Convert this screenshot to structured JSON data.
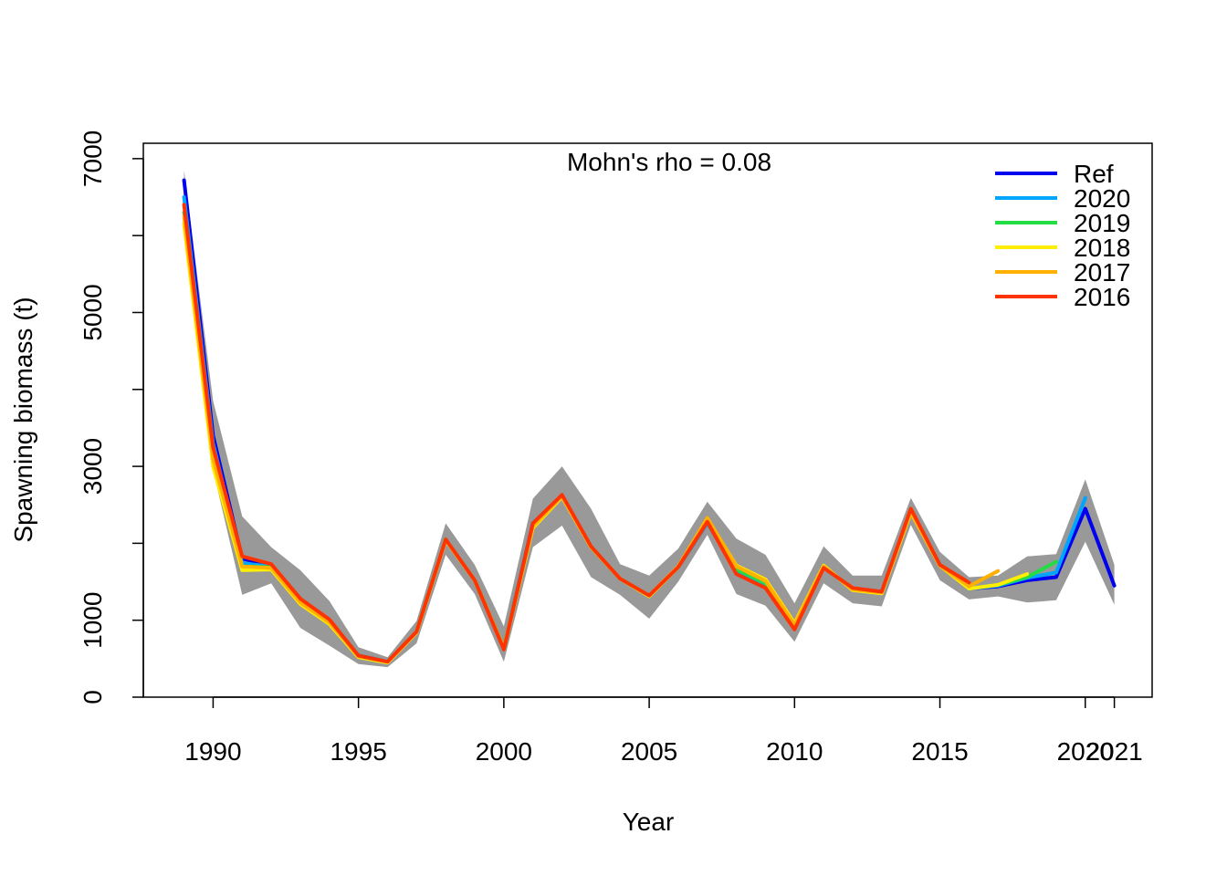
{
  "chart_data": {
    "type": "line",
    "title": "",
    "annotation": "Mohn's rho = 0.08",
    "xlabel": "Year",
    "ylabel": "Spawning biomass (t)",
    "xlim": [
      1987.6,
      2022.3
    ],
    "ylim": [
      0,
      7200
    ],
    "x_ticks": [
      1990,
      1995,
      2000,
      2005,
      2010,
      2015,
      2020,
      2021
    ],
    "x_tick_labels": [
      "1990",
      "1995",
      "2000",
      "2005",
      "2010",
      "2015",
      "2020",
      "2021"
    ],
    "y_ticks": [
      0,
      1000,
      3000,
      5000,
      7000
    ],
    "y_tick_labels": [
      "0",
      "1000",
      "3000",
      "5000",
      "7000"
    ],
    "grid": false,
    "legend": {
      "position": "top-right",
      "entries": [
        "Ref",
        "2020",
        "2019",
        "2018",
        "2017",
        "2016"
      ]
    },
    "confidence_band": {
      "color": "#999999",
      "x": [
        1989,
        1990,
        1991,
        1992,
        1993,
        1994,
        1995,
        1996,
        1997,
        1998,
        1999,
        2000,
        2001,
        2002,
        2003,
        2004,
        2005,
        2006,
        2007,
        2008,
        2009,
        2010,
        2011,
        2012,
        2013,
        2014,
        2015,
        2016,
        2017,
        2018,
        2019,
        2020,
        2021
      ],
      "upper": [
        6850,
        3850,
        2350,
        1950,
        1650,
        1250,
        650,
        520,
        990,
        2260,
        1720,
        920,
        2580,
        3000,
        2450,
        1730,
        1580,
        1930,
        2540,
        2060,
        1850,
        1220,
        1960,
        1580,
        1580,
        2590,
        1890,
        1560,
        1580,
        1830,
        1860,
        2830,
        1720
      ],
      "lower": [
        6000,
        2950,
        1330,
        1480,
        900,
        670,
        430,
        390,
        700,
        1850,
        1340,
        460,
        1950,
        2230,
        1560,
        1330,
        1020,
        1500,
        2110,
        1340,
        1190,
        720,
        1480,
        1220,
        1180,
        2240,
        1520,
        1270,
        1310,
        1230,
        1260,
        2020,
        1200
      ]
    },
    "series": [
      {
        "name": "Ref",
        "color": "#0000ee",
        "x": [
          1989,
          1990,
          1991,
          1992,
          1993,
          1994,
          1995,
          1996,
          1997,
          1998,
          1999,
          2000,
          2001,
          2002,
          2003,
          2004,
          2005,
          2006,
          2007,
          2008,
          2009,
          2010,
          2011,
          2012,
          2013,
          2014,
          2015,
          2016,
          2017,
          2018,
          2019,
          2020,
          2021
        ],
        "values": [
          6720,
          3400,
          1800,
          1720,
          1270,
          1000,
          540,
          460,
          850,
          2050,
          1520,
          640,
          2260,
          2620,
          1950,
          1540,
          1320,
          1690,
          2270,
          1640,
          1460,
          900,
          1690,
          1410,
          1370,
          2420,
          1720,
          1410,
          1440,
          1520,
          1560,
          2450,
          1450
        ]
      },
      {
        "name": "2020",
        "color": "#00a5ff",
        "x": [
          1989,
          1990,
          1991,
          1992,
          1993,
          1994,
          1995,
          1996,
          1997,
          1998,
          1999,
          2000,
          2001,
          2002,
          2003,
          2004,
          2005,
          2006,
          2007,
          2008,
          2009,
          2010,
          2011,
          2012,
          2013,
          2014,
          2015,
          2016,
          2017,
          2018,
          2019,
          2020
        ],
        "values": [
          6500,
          3300,
          1740,
          1700,
          1260,
          990,
          540,
          460,
          850,
          2050,
          1520,
          640,
          2260,
          2620,
          1950,
          1540,
          1320,
          1690,
          2270,
          1640,
          1460,
          900,
          1690,
          1410,
          1370,
          2420,
          1720,
          1410,
          1450,
          1550,
          1620,
          2590
        ]
      },
      {
        "name": "2019",
        "color": "#22dd44",
        "x": [
          1989,
          1990,
          1991,
          1992,
          1993,
          1994,
          1995,
          1996,
          1997,
          1998,
          1999,
          2000,
          2001,
          2002,
          2003,
          2004,
          2005,
          2006,
          2007,
          2008,
          2009,
          2010,
          2011,
          2012,
          2013,
          2014,
          2015,
          2016,
          2017,
          2018,
          2019
        ],
        "values": [
          6300,
          3150,
          1700,
          1690,
          1240,
          980,
          530,
          460,
          850,
          2050,
          1520,
          640,
          2230,
          2620,
          1950,
          1540,
          1310,
          1690,
          2290,
          1660,
          1480,
          920,
          1700,
          1400,
          1360,
          2420,
          1720,
          1410,
          1460,
          1560,
          1760
        ]
      },
      {
        "name": "2018",
        "color": "#ffee00",
        "x": [
          1989,
          1990,
          1991,
          1992,
          1993,
          1994,
          1995,
          1996,
          1997,
          1998,
          1999,
          2000,
          2001,
          2002,
          2003,
          2004,
          2005,
          2006,
          2007,
          2008,
          2009,
          2010,
          2011,
          2012,
          2013,
          2014,
          2015,
          2016,
          2017,
          2018
        ],
        "values": [
          6150,
          3000,
          1650,
          1660,
          1210,
          950,
          520,
          450,
          840,
          2040,
          1520,
          630,
          2200,
          2600,
          1950,
          1540,
          1310,
          1690,
          2320,
          1710,
          1530,
          960,
          1710,
          1390,
          1350,
          2400,
          1710,
          1410,
          1460,
          1600
        ]
      },
      {
        "name": "2017",
        "color": "#ffb000",
        "x": [
          1989,
          1990,
          1991,
          1992,
          1993,
          1994,
          1995,
          1996,
          1997,
          1998,
          1999,
          2000,
          2001,
          2002,
          2003,
          2004,
          2005,
          2006,
          2007,
          2008,
          2009,
          2010,
          2011,
          2012,
          2013,
          2014,
          2015,
          2016,
          2017
        ],
        "values": [
          6250,
          3100,
          1700,
          1680,
          1230,
          970,
          530,
          460,
          850,
          2050,
          1520,
          640,
          2220,
          2610,
          1950,
          1540,
          1320,
          1700,
          2330,
          1700,
          1510,
          940,
          1700,
          1400,
          1360,
          2410,
          1710,
          1440,
          1640
        ]
      },
      {
        "name": "2016",
        "color": "#ff3300",
        "x": [
          1989,
          1990,
          1991,
          1992,
          1993,
          1994,
          1995,
          1996,
          1997,
          1998,
          1999,
          2000,
          2001,
          2002,
          2003,
          2004,
          2005,
          2006,
          2007,
          2008,
          2009,
          2010,
          2011,
          2012,
          2013,
          2014,
          2015,
          2016
        ],
        "values": [
          6400,
          3250,
          1830,
          1730,
          1280,
          1010,
          540,
          460,
          850,
          2050,
          1520,
          620,
          2260,
          2630,
          1960,
          1540,
          1320,
          1690,
          2280,
          1600,
          1420,
          880,
          1680,
          1420,
          1370,
          2450,
          1720,
          1490
        ]
      }
    ]
  }
}
